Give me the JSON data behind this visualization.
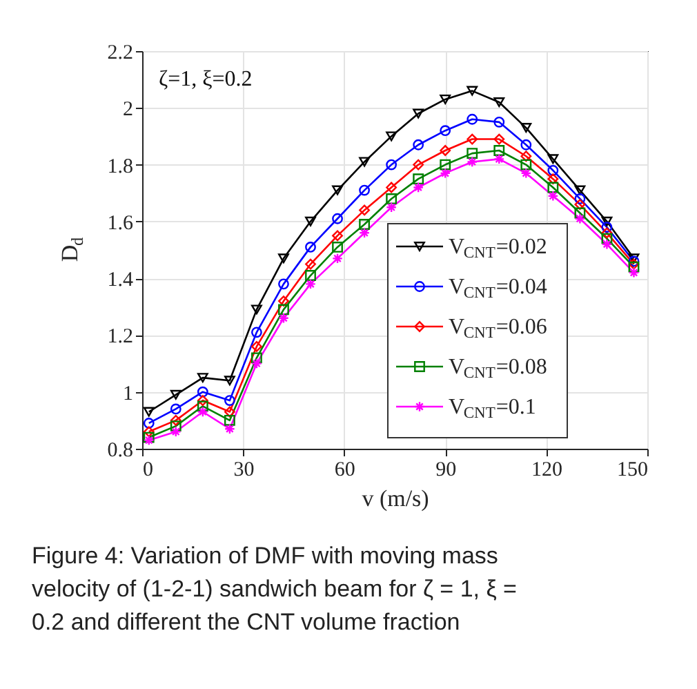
{
  "chart_data": {
    "type": "line",
    "xlabel": "v (m/s)",
    "ylabel": "D$_{d}$",
    "x": [
      2,
      10,
      18,
      26,
      34,
      42,
      50,
      58,
      66,
      74,
      82,
      90,
      98,
      106,
      114,
      122,
      130,
      138,
      146
    ],
    "series": [
      {
        "name": "V$_{CNT}$=0.02",
        "color": "#000000",
        "marker": "triangle",
        "values": [
          0.93,
          0.99,
          1.05,
          1.04,
          1.29,
          1.47,
          1.6,
          1.71,
          1.81,
          1.9,
          1.98,
          2.03,
          2.06,
          2.02,
          1.93,
          1.82,
          1.71,
          1.6,
          1.47
        ]
      },
      {
        "name": "V$_{CNT}$=0.04",
        "color": "#0000ff",
        "marker": "circle",
        "values": [
          0.89,
          0.94,
          1.0,
          0.97,
          1.21,
          1.38,
          1.51,
          1.61,
          1.71,
          1.8,
          1.87,
          1.92,
          1.96,
          1.95,
          1.87,
          1.78,
          1.68,
          1.58,
          1.46
        ]
      },
      {
        "name": "V$_{CNT}$=0.06",
        "color": "#ff0000",
        "marker": "diamond",
        "values": [
          0.86,
          0.9,
          0.97,
          0.93,
          1.16,
          1.32,
          1.45,
          1.55,
          1.64,
          1.72,
          1.8,
          1.85,
          1.89,
          1.89,
          1.83,
          1.75,
          1.66,
          1.56,
          1.45
        ]
      },
      {
        "name": "V$_{CNT}$=0.08",
        "color": "#008000",
        "marker": "square",
        "values": [
          0.84,
          0.88,
          0.95,
          0.9,
          1.12,
          1.29,
          1.41,
          1.51,
          1.59,
          1.68,
          1.75,
          1.8,
          1.84,
          1.85,
          1.8,
          1.72,
          1.63,
          1.54,
          1.44
        ]
      },
      {
        "name": "V$_{CNT}$=0.1",
        "color": "#ff00ff",
        "marker": "cross",
        "values": [
          0.83,
          0.86,
          0.93,
          0.87,
          1.1,
          1.26,
          1.38,
          1.47,
          1.56,
          1.65,
          1.72,
          1.77,
          1.81,
          1.82,
          1.77,
          1.69,
          1.61,
          1.52,
          1.42
        ]
      }
    ],
    "xlim": [
      0,
      150
    ],
    "xticks": [
      0,
      30,
      60,
      90,
      120,
      150
    ],
    "ylim": [
      0.8,
      2.2
    ],
    "yticks": [
      0.8,
      1,
      1.2,
      1.4,
      1.6,
      1.8,
      2,
      2.2
    ],
    "grid": true,
    "legend": "bottom right",
    "line_style": "solid",
    "annotations": [
      "ζ=1, ξ=0.2",
      "Figure 4: Variation of DMF with moving mass velocity of (1-2-1) sandwich beam for ζ = 1, ξ = 0.2 and different the CNT volume fraction"
    ]
  }
}
